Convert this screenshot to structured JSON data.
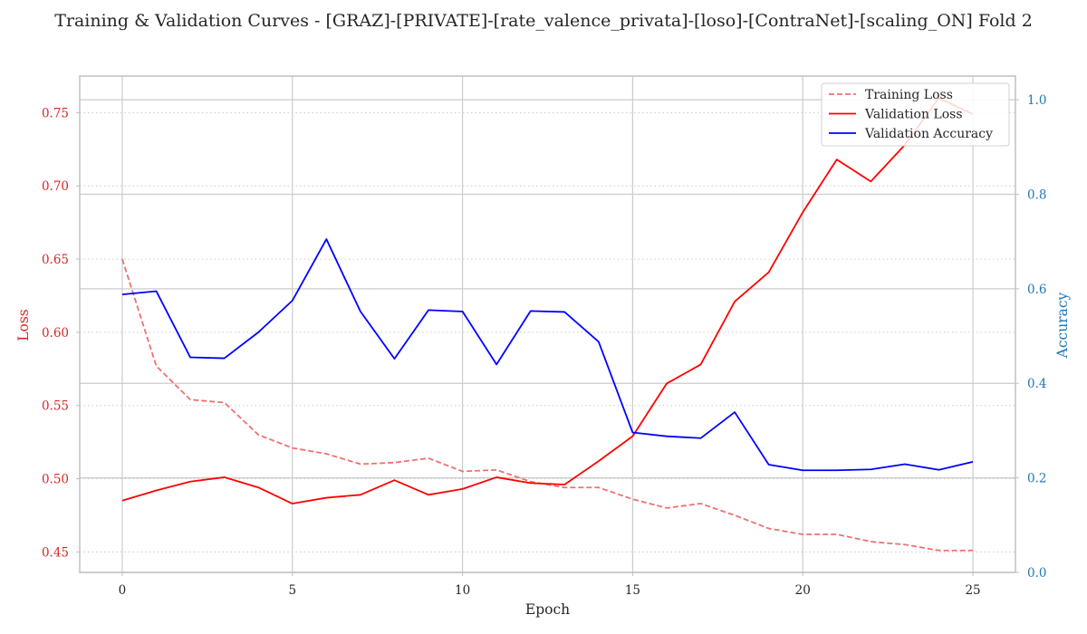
{
  "chart_data": {
    "type": "line",
    "title": "Training & Validation Curves - [GRAZ]-[PRIVATE]-[rate_valence_privata]-[loso]-[ContraNet]-[scaling_ON] Fold 2",
    "xlabel": "Epoch",
    "ylabel_left": "Loss",
    "ylabel_right": "Accuracy",
    "xlim": [
      -1.25,
      26.25
    ],
    "ylim_left": [
      0.436,
      0.775
    ],
    "ylim_right": [
      0.0,
      1.05
    ],
    "x_ticks": [
      0,
      5,
      10,
      15,
      20,
      25
    ],
    "y_left_ticks": [
      0.45,
      0.5,
      0.55,
      0.6,
      0.65,
      0.7,
      0.75
    ],
    "y_right_ticks": [
      0.0,
      0.2,
      0.4,
      0.6,
      0.8,
      1.0
    ],
    "grid": true,
    "legend_position": "top-right",
    "x": [
      0,
      1,
      2,
      3,
      4,
      5,
      6,
      7,
      8,
      9,
      10,
      11,
      12,
      13,
      14,
      15,
      16,
      17,
      18,
      19,
      20,
      21,
      22,
      23,
      24,
      25
    ],
    "series": [
      {
        "name": "Training Loss",
        "axis": "left",
        "color": "#f07070",
        "style": "dashed",
        "values": [
          0.65,
          0.577,
          0.554,
          0.552,
          0.53,
          0.521,
          0.517,
          0.51,
          0.511,
          0.514,
          0.505,
          0.506,
          0.498,
          0.494,
          0.494,
          0.486,
          0.48,
          0.483,
          0.475,
          0.466,
          0.462,
          0.462,
          0.457,
          0.455,
          0.451,
          0.451
        ]
      },
      {
        "name": "Validation Loss",
        "axis": "left",
        "color": "#ff0000",
        "style": "solid",
        "values": [
          0.485,
          0.492,
          0.498,
          0.501,
          0.494,
          0.483,
          0.487,
          0.489,
          0.499,
          0.489,
          0.493,
          0.501,
          0.497,
          0.496,
          0.512,
          0.529,
          0.565,
          0.578,
          0.621,
          0.641,
          0.682,
          0.718,
          0.703,
          0.728,
          0.76,
          0.749
        ]
      },
      {
        "name": "Validation Accuracy",
        "axis": "right",
        "color": "#0000ff",
        "style": "solid",
        "values": [
          0.588,
          0.595,
          0.455,
          0.453,
          0.508,
          0.575,
          0.705,
          0.552,
          0.452,
          0.555,
          0.552,
          0.44,
          0.553,
          0.551,
          0.488,
          0.296,
          0.288,
          0.284,
          0.339,
          0.228,
          0.216,
          0.216,
          0.218,
          0.229,
          0.217,
          0.234
        ]
      }
    ],
    "colors": {
      "left_axis": "#d62728",
      "right_axis": "#1f77b4",
      "text": "#262626",
      "grid": "#cccccc",
      "spine": "#c0c0c0"
    }
  }
}
